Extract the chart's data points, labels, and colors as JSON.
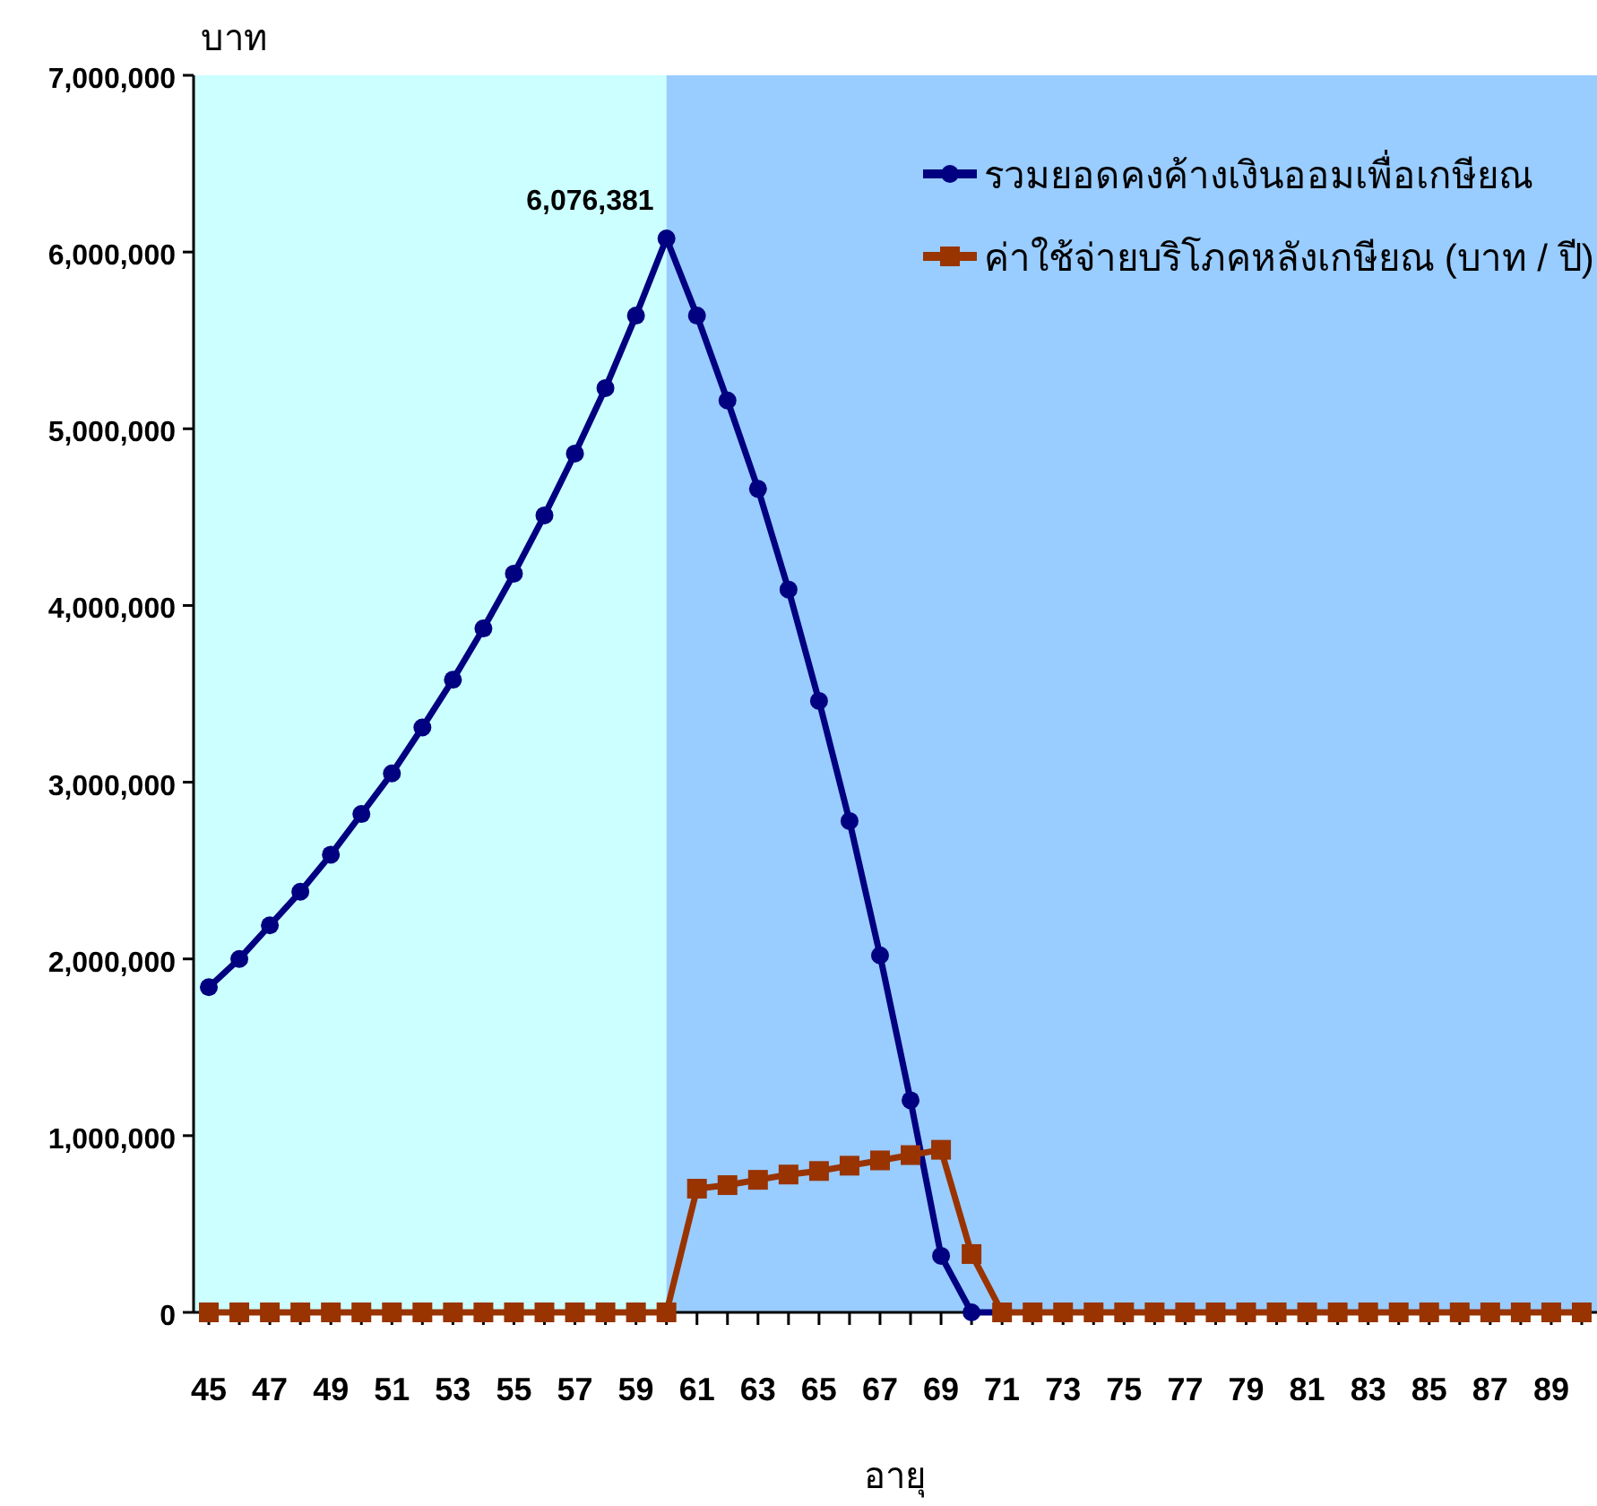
{
  "chart_data": {
    "type": "line",
    "xlabel": "อายุ",
    "ylabel": "บาท",
    "x": [
      45,
      46,
      47,
      48,
      49,
      50,
      51,
      52,
      53,
      54,
      55,
      56,
      57,
      58,
      59,
      60,
      61,
      62,
      63,
      64,
      65,
      66,
      67,
      68,
      69,
      70,
      71,
      72,
      73,
      74,
      75,
      76,
      77,
      78,
      79,
      80,
      81,
      82,
      83,
      84,
      85,
      86,
      87,
      88,
      89,
      90
    ],
    "series": [
      {
        "name": "รวมยอดคงค้างเงินออมเพื่อเกษียณ",
        "color": "#000080",
        "marker": "circle",
        "values": [
          1840000,
          2000000,
          2190000,
          2380000,
          2590000,
          2820000,
          3050000,
          3310000,
          3580000,
          3870000,
          4180000,
          4510000,
          4860000,
          5230000,
          5640000,
          6076381,
          5640000,
          5160000,
          4660000,
          4090000,
          3460000,
          2780000,
          2020000,
          1200000,
          320000,
          0,
          0,
          null,
          null,
          null,
          null,
          null,
          null,
          null,
          null,
          null,
          null,
          null,
          null,
          null,
          null,
          null,
          null,
          null,
          null,
          null
        ]
      },
      {
        "name": "ค่าใช้จ่ายบริโภคหลังเกษียณ (บาท / ปี)",
        "color": "#993300",
        "marker": "square",
        "values": [
          0,
          0,
          0,
          0,
          0,
          0,
          0,
          0,
          0,
          0,
          0,
          0,
          0,
          0,
          0,
          0,
          700000,
          720000,
          750000,
          780000,
          800000,
          830000,
          860000,
          890000,
          920000,
          330000,
          0,
          0,
          0,
          0,
          0,
          0,
          0,
          0,
          0,
          0,
          0,
          0,
          0,
          0,
          0,
          0,
          0,
          0,
          0,
          0
        ]
      }
    ],
    "xlim": [
      44.5,
      90.5
    ],
    "xticks": [
      45,
      {
        "value": 46,
        "label": null
      },
      47,
      {
        "value": 48,
        "label": null
      },
      49,
      {
        "value": 50,
        "label": null
      },
      51,
      {
        "value": 52,
        "label": null
      },
      53,
      {
        "value": 54,
        "label": null
      },
      55,
      {
        "value": 56,
        "label": null
      },
      57,
      {
        "value": 58,
        "label": null
      },
      59,
      {
        "value": 60,
        "label": null
      },
      61,
      {
        "value": 62,
        "label": null
      },
      63,
      {
        "value": 64,
        "label": null
      },
      65,
      {
        "value": 66,
        "label": null
      },
      67,
      {
        "value": 68,
        "label": null
      },
      69,
      {
        "value": 70,
        "label": null
      },
      71,
      {
        "value": 72,
        "label": null
      },
      73,
      {
        "value": 74,
        "label": null
      },
      75,
      {
        "value": 76,
        "label": null
      },
      77,
      {
        "value": 78,
        "label": null
      },
      79,
      {
        "value": 80,
        "label": null
      },
      81,
      {
        "value": 82,
        "label": null
      },
      83,
      {
        "value": 84,
        "label": null
      },
      85,
      {
        "value": 86,
        "label": null
      },
      87,
      {
        "value": 88,
        "label": null
      },
      89,
      {
        "value": 90,
        "label": null
      }
    ],
    "ylim": [
      0,
      7000000
    ],
    "yticks": [
      0,
      {
        "value": 1000000,
        "label": "1,000,000"
      },
      {
        "value": 2000000,
        "label": "2,000,000"
      },
      {
        "value": 3000000,
        "label": "3,000,000"
      },
      {
        "value": 4000000,
        "label": "4,000,000"
      },
      {
        "value": 5000000,
        "label": "5,000,000"
      },
      {
        "value": 6000000,
        "label": "6,000,000"
      },
      {
        "value": 7000000,
        "label": "7,000,000"
      }
    ],
    "bands": [
      {
        "axis": "x",
        "from": 44.5,
        "to": 60,
        "color": "#ccffff"
      },
      {
        "axis": "x",
        "from": 60,
        "to": 90.5,
        "color": "#99ccff"
      }
    ],
    "annotations": [
      {
        "text": "6,076,381",
        "x": 60,
        "y": 6076381
      }
    ],
    "grid": false,
    "legend": "top right",
    "line_style": "solid"
  }
}
